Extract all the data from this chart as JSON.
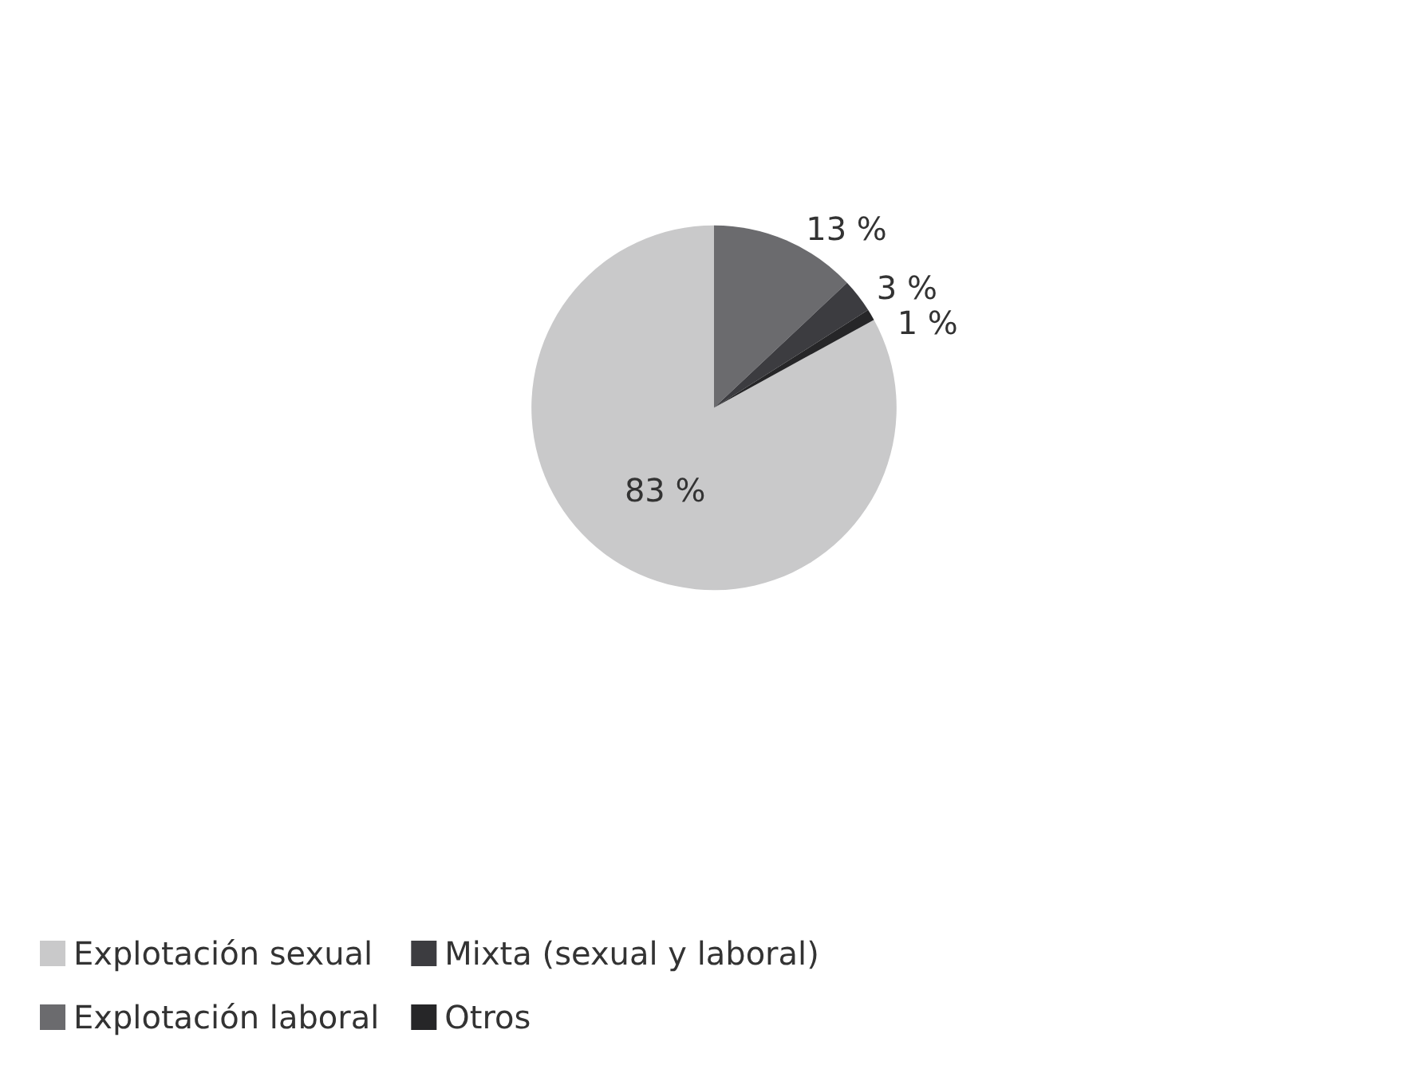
{
  "chart_data": {
    "type": "pie",
    "categories": [
      "Explotación sexual",
      "Explotación laboral",
      "Mixta (sexual y laboral)",
      "Otros"
    ],
    "values": [
      83,
      13,
      3,
      1
    ],
    "colors": [
      "#c9c9ca",
      "#6b6b6e",
      "#3c3c40",
      "#262628"
    ],
    "value_labels": [
      "83 %",
      "13 %",
      "3 %",
      "1 %"
    ],
    "legend": "bottom"
  }
}
